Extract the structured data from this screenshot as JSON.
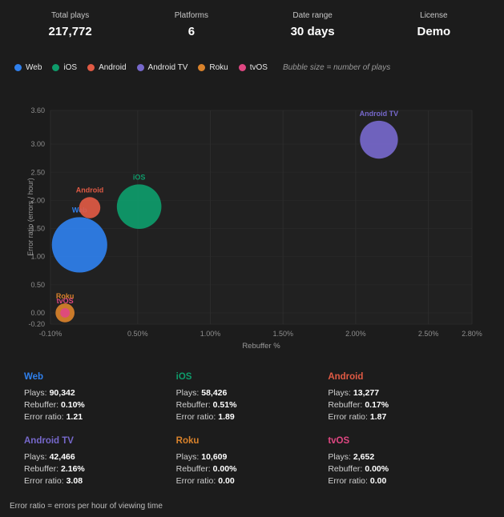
{
  "header": {
    "stats": [
      {
        "label": "Total plays",
        "value": "217,772"
      },
      {
        "label": "Platforms",
        "value": "6"
      },
      {
        "label": "Date range",
        "value": "30 days"
      },
      {
        "label": "License",
        "value": "Demo"
      }
    ]
  },
  "legend": {
    "note": "Bubble size = number of plays"
  },
  "chart_data": {
    "type": "scatter",
    "x_label": "Rebuffer %",
    "y_label": "Error ratio (errors / hour)",
    "xlim": [
      -0.1,
      2.8
    ],
    "ylim": [
      -0.2,
      3.6
    ],
    "grid": true,
    "x_ticks": [
      {
        "value": -0.1,
        "label": "-0.10%"
      },
      {
        "value": 0.5,
        "label": "0.50%"
      },
      {
        "value": 1.0,
        "label": "1.00%"
      },
      {
        "value": 1.5,
        "label": "1.50%"
      },
      {
        "value": 2.0,
        "label": "2.00%"
      },
      {
        "value": 2.5,
        "label": "2.50%"
      },
      {
        "value": 2.8,
        "label": "2.80%"
      }
    ],
    "y_ticks": [
      {
        "value": 3.6,
        "label": "3.60"
      },
      {
        "value": 3.0,
        "label": "3.00"
      },
      {
        "value": 2.5,
        "label": "2.50"
      },
      {
        "value": 2.0,
        "label": "2.00"
      },
      {
        "value": 1.5,
        "label": "1.50"
      },
      {
        "value": 1.0,
        "label": "1.00"
      },
      {
        "value": 0.5,
        "label": "0.50"
      },
      {
        "value": 0.0,
        "label": "0.00"
      },
      {
        "value": -0.2,
        "label": "-0.20"
      }
    ],
    "series": [
      {
        "name": "Web",
        "color": "#2f80ed",
        "rebuffer_pct": 0.1,
        "error_ratio": 1.21,
        "plays": 90342
      },
      {
        "name": "iOS",
        "color": "#0e9c6b",
        "rebuffer_pct": 0.51,
        "error_ratio": 1.89,
        "plays": 58426
      },
      {
        "name": "Android",
        "color": "#e05a44",
        "rebuffer_pct": 0.17,
        "error_ratio": 1.87,
        "plays": 13277
      },
      {
        "name": "Android TV",
        "color": "#7668cb",
        "rebuffer_pct": 2.16,
        "error_ratio": 3.08,
        "plays": 42466
      },
      {
        "name": "Roku",
        "color": "#d9822b",
        "rebuffer_pct": 0.0,
        "error_ratio": 0.0,
        "plays": 10609
      },
      {
        "name": "tvOS",
        "color": "#df4782",
        "rebuffer_pct": 0.0,
        "error_ratio": 0.0,
        "plays": 2652
      }
    ]
  },
  "labels": {
    "plays": "Plays:",
    "rebuffer": "Rebuffer:",
    "error_ratio": "Error ratio:"
  },
  "cards": [
    {
      "name": "Web",
      "color": "#2f80ed",
      "plays": "90,342",
      "rebuffer": "0.10%",
      "error_ratio": "1.21"
    },
    {
      "name": "iOS",
      "color": "#0e9c6b",
      "plays": "58,426",
      "rebuffer": "0.51%",
      "error_ratio": "1.89"
    },
    {
      "name": "Android",
      "color": "#e05a44",
      "plays": "13,277",
      "rebuffer": "0.17%",
      "error_ratio": "1.87"
    },
    {
      "name": "Android TV",
      "color": "#7668cb",
      "plays": "42,466",
      "rebuffer": "2.16%",
      "error_ratio": "3.08"
    },
    {
      "name": "Roku",
      "color": "#d9822b",
      "plays": "10,609",
      "rebuffer": "0.00%",
      "error_ratio": "0.00"
    },
    {
      "name": "tvOS",
      "color": "#df4782",
      "plays": "2,652",
      "rebuffer": "0.00%",
      "error_ratio": "0.00"
    }
  ],
  "footer": {
    "note": "Error ratio = errors per hour of viewing time"
  }
}
